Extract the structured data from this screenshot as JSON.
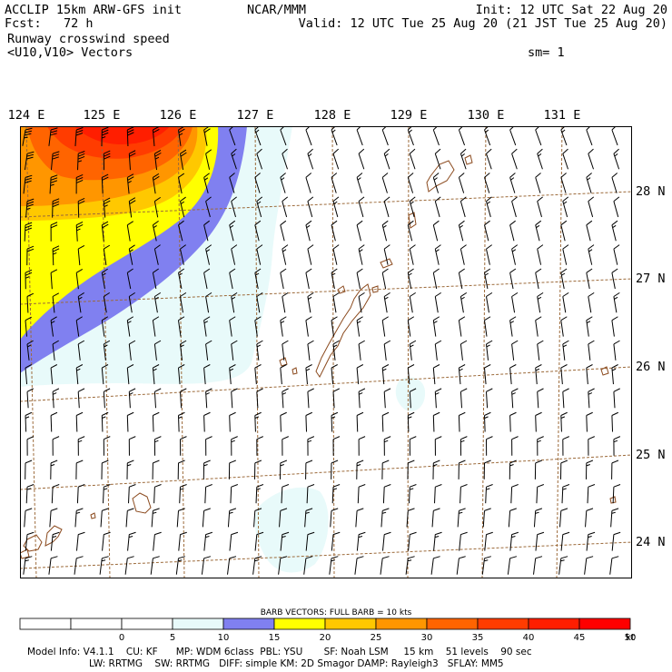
{
  "header": {
    "left_line1": "ACCLIP 15km ARW-GFS init",
    "left_line2": "Fcst:   72 h",
    "center_line1": "NCAR/MMM",
    "right_line1": "Init: 12 UTC Sat 22 Aug 20",
    "right_line2": "Valid: 12 UTC Tue 25 Aug 20 (21 JST Tue 25 Aug 20)",
    "field_name": "Runway crosswind speed",
    "vector_name": "<U10,V10> Vectors",
    "smoothing": "sm= 1"
  },
  "map": {
    "longitude_labels": [
      "124 E",
      "125 E",
      "126 E",
      "127 E",
      "128 E",
      "129 E",
      "130 E",
      "131 E"
    ],
    "latitude_labels": [
      "28 N",
      "27 N",
      "26 N",
      "25 N",
      "24 N"
    ],
    "grid_color": "#9c6a3a",
    "coast_color": "#8b4a1e"
  },
  "legend": {
    "title": "BARB VECTORS:  FULL BARB = 10 kts",
    "tick_labels": [
      "0",
      "5",
      "10",
      "15",
      "20",
      "25",
      "30",
      "35",
      "40",
      "45",
      "50"
    ],
    "unit": "kt",
    "bins": [
      {
        "range": "<0",
        "color": "#ffffff"
      },
      {
        "range": "0-5",
        "color": "#ffffff"
      },
      {
        "range": "5-10",
        "color": "#ffffff"
      },
      {
        "range": "10-15",
        "color": "#e8fafa"
      },
      {
        "range": "15-20",
        "color": "#8080f0"
      },
      {
        "range": "20-25",
        "color": "#ffff00"
      },
      {
        "range": "25-30",
        "color": "#ffc800"
      },
      {
        "range": "30-35",
        "color": "#ff9600"
      },
      {
        "range": "35-40",
        "color": "#ff6400"
      },
      {
        "range": "40-45",
        "color": "#ff3c00"
      },
      {
        "range": "45-50",
        "color": "#ff1e00"
      },
      {
        "range": ">50",
        "color": "#ff0000"
      }
    ]
  },
  "footer": {
    "line1": "Model Info: V4.1.1    CU: KF      MP: WDM 6class  PBL: YSU       SF: Noah LSM     15 km    51 levels    90 sec",
    "line2": "LW: RRTMG    SW: RRTMG   DIFF: simple KM: 2D Smagor DAMP: Rayleigh3   SFLAY: MM5"
  }
}
